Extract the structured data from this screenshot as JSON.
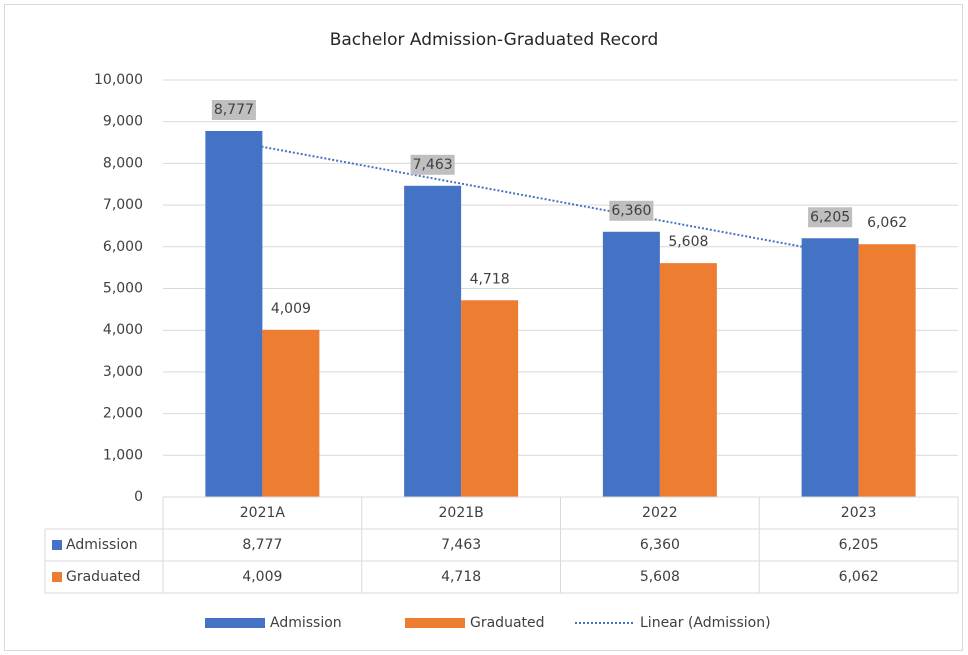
{
  "chart_data": {
    "type": "bar",
    "title": "Bachelor Admission-Graduated  Record",
    "categories": [
      "2021A",
      "2021B",
      "2022",
      "2023"
    ],
    "series": [
      {
        "name": "Admission",
        "color": "#4472c4",
        "values": [
          8777,
          7463,
          6360,
          6205
        ],
        "value_labels": [
          "8,777",
          "7,463",
          "6,360",
          "6,205"
        ]
      },
      {
        "name": "Graduated",
        "color": "#ed7d31",
        "values": [
          4009,
          4718,
          5608,
          6062
        ],
        "value_labels": [
          "4,009",
          "4,718",
          "5,608",
          "6,062"
        ]
      }
    ],
    "trendline": {
      "name": "Linear (Admission)",
      "series": 0,
      "color": "#4472c4"
    },
    "ylim": [
      0,
      10000
    ],
    "yticks": [
      0,
      {
        "value": 1000,
        "label": "1,000"
      },
      {
        "value": 2000,
        "label": "2,000"
      },
      {
        "value": 3000,
        "label": "3,000"
      },
      {
        "value": 4000,
        "label": "4,000"
      },
      {
        "value": 5000,
        "label": "5,000"
      },
      {
        "value": 6000,
        "label": "6,000"
      },
      {
        "value": 7000,
        "label": "7,000"
      },
      {
        "value": 8000,
        "label": "8,000"
      },
      {
        "value": 9000,
        "label": "9,000"
      },
      {
        "value": 10000,
        "label": "10,000"
      }
    ],
    "grid": true
  }
}
